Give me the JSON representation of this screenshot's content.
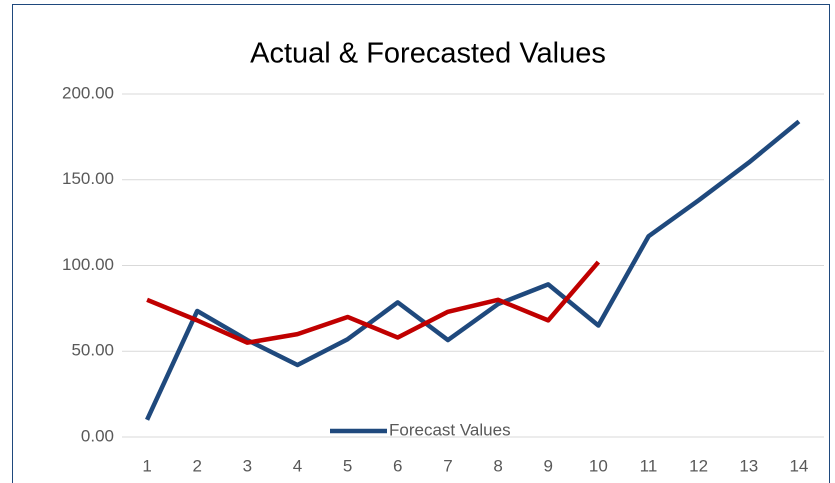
{
  "chart_data": {
    "type": "line",
    "title": "Actual & Forecasted Values",
    "categories": [
      "1",
      "2",
      "3",
      "4",
      "5",
      "6",
      "7",
      "8",
      "9",
      "10",
      "11",
      "12",
      "13",
      "14"
    ],
    "series": [
      {
        "name": "Forecast Values",
        "color": "#1f497d",
        "values": [
          10,
          73.5,
          56.5,
          42,
          57,
          78.5,
          56.5,
          77.5,
          89,
          65,
          117,
          138,
          160,
          184
        ]
      },
      {
        "color": "#c00000",
        "values": [
          80,
          68,
          55,
          60,
          70,
          58,
          73,
          80,
          68,
          102,
          null,
          null,
          null,
          null
        ]
      }
    ],
    "ylim": [
      0,
      200
    ],
    "yticks": [
      {
        "value": 0,
        "label": "0.00"
      },
      {
        "value": 50,
        "label": "50.00"
      },
      {
        "value": 100,
        "label": "100.00"
      },
      {
        "value": 150,
        "label": "150.00"
      },
      {
        "value": 200,
        "label": "200.00"
      }
    ],
    "grid": true,
    "legend": "bottom"
  }
}
